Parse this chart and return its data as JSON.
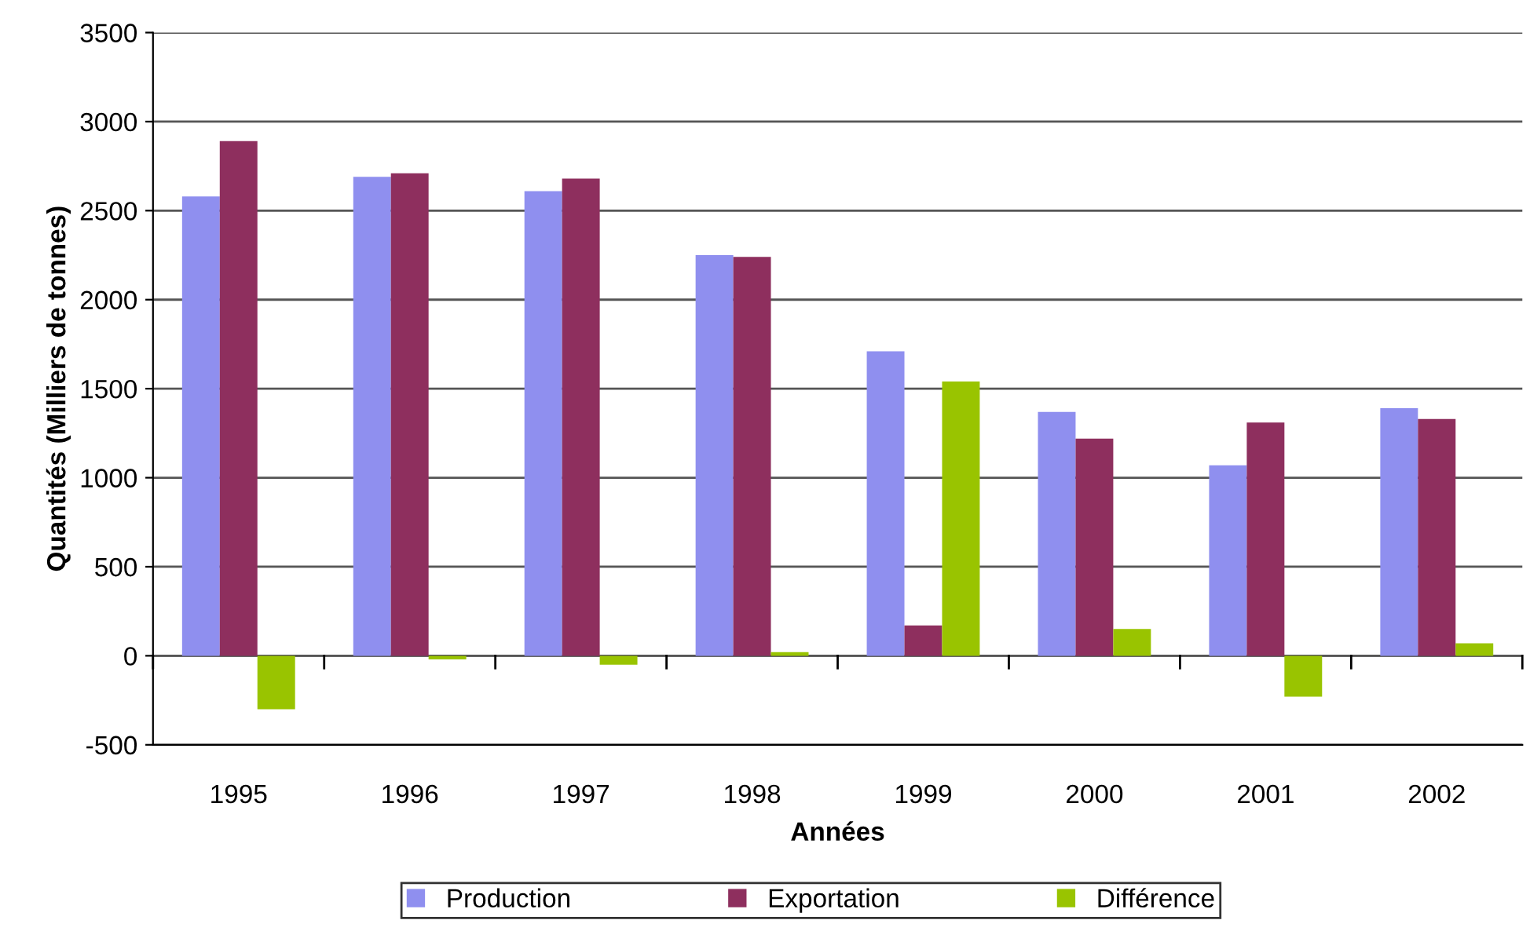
{
  "chart_data": {
    "type": "bar",
    "xlabel": "Années",
    "ylabel": "Quantités (Milliers de tonnes)",
    "categories": [
      "1995",
      "1996",
      "1997",
      "1998",
      "1999",
      "2000",
      "2001",
      "2002"
    ],
    "series": [
      {
        "name": "Production",
        "color": "#8f8fef",
        "values": [
          2580,
          2690,
          2610,
          2250,
          1710,
          1370,
          1070,
          1390
        ]
      },
      {
        "name": "Exportation",
        "color": "#8e2f5e",
        "values": [
          2890,
          2710,
          2680,
          2240,
          170,
          1220,
          1310,
          1330
        ]
      },
      {
        "name": "Différence",
        "color": "#99c400",
        "values": [
          -300,
          -20,
          -50,
          20,
          1540,
          150,
          -230,
          70
        ]
      }
    ],
    "ylim": [
      -500,
      3500
    ],
    "yticks": [
      -500,
      0,
      500,
      1000,
      1500,
      2000,
      2500,
      3000,
      3500
    ],
    "grid": "y",
    "legend": "bottom"
  }
}
